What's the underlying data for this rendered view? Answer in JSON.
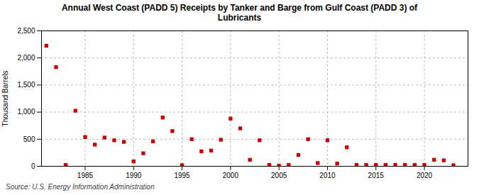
{
  "chart_data": {
    "type": "scatter",
    "title": "Annual West Coast (PADD 5) Receipts by Tanker and Barge from Gulf Coast (PADD 3) of\nLubricants",
    "ylabel": "Thousand Barrels",
    "source": "Source: U.S. Energy Information Administration",
    "x": [
      1981,
      1982,
      1983,
      1984,
      1985,
      1986,
      1987,
      1988,
      1989,
      1990,
      1991,
      1992,
      1993,
      1994,
      1995,
      1996,
      1997,
      1998,
      1999,
      2000,
      2001,
      2002,
      2003,
      2004,
      2005,
      2006,
      2007,
      2008,
      2009,
      2010,
      2011,
      2012,
      2013,
      2014,
      2015,
      2016,
      2017,
      2018,
      2019,
      2020,
      2021,
      2022,
      2023
    ],
    "values": [
      2225,
      1830,
      25,
      1025,
      540,
      400,
      530,
      480,
      450,
      90,
      240,
      460,
      900,
      650,
      20,
      500,
      275,
      290,
      490,
      880,
      700,
      120,
      480,
      25,
      10,
      25,
      210,
      500,
      60,
      480,
      50,
      350,
      25,
      25,
      25,
      25,
      25,
      25,
      25,
      25,
      120,
      110,
      20
    ],
    "color": "#cc0000",
    "marker": "square",
    "xlim": [
      1980.5,
      2024.5
    ],
    "xticks": [
      1985,
      1990,
      1995,
      2000,
      2005,
      2010,
      2015,
      2020
    ],
    "ylim": [
      0,
      2500
    ],
    "yticks": [
      0,
      500,
      {
        "value": 1000,
        "label": "1,000"
      },
      {
        "value": 1500,
        "label": "1,500"
      },
      {
        "value": 2000,
        "label": "2,000"
      },
      {
        "value": 2500,
        "label": "2,500"
      }
    ],
    "grid": true
  }
}
